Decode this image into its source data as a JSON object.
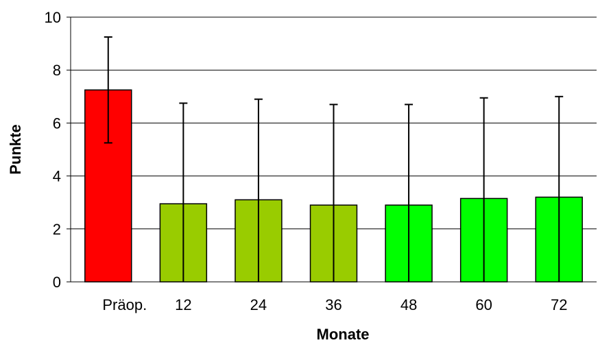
{
  "chart_data": {
    "type": "bar",
    "title": "",
    "xlabel": "Monate",
    "ylabel": "Punkte",
    "ylim": [
      0,
      10
    ],
    "yticks": [
      0,
      2,
      4,
      6,
      8,
      10
    ],
    "grid": true,
    "categories": [
      "Präop.",
      "12",
      "24",
      "36",
      "48",
      "60",
      "72"
    ],
    "values": [
      7.25,
      2.95,
      3.1,
      2.9,
      2.9,
      3.15,
      3.2
    ],
    "error_upper": [
      9.25,
      6.75,
      6.9,
      6.7,
      6.7,
      6.95,
      7.0
    ],
    "error_lower": [
      5.25,
      0,
      0,
      0,
      0,
      0,
      0
    ],
    "colors": [
      "#ff0000",
      "#99cc00",
      "#99cc00",
      "#99cc00",
      "#00ff00",
      "#00ff00",
      "#00ff00"
    ]
  }
}
